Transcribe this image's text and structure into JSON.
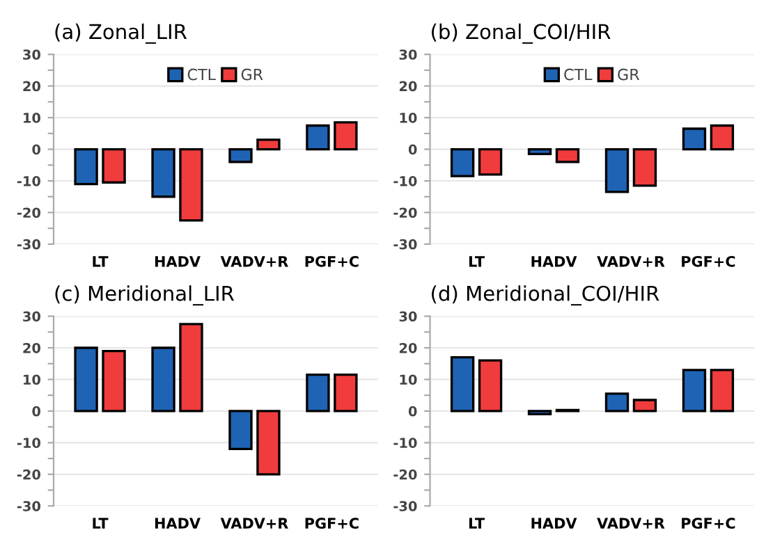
{
  "chart_data": [
    {
      "type": "bar",
      "title": "(a) Zonal_LIR",
      "categories": [
        "LT",
        "HADV",
        "VADV+R",
        "PGF+C"
      ],
      "legend": "top",
      "grid": "y",
      "ylim": [
        -30,
        30
      ],
      "yticks": [
        -30,
        {
          "value": -25,
          "label": null
        },
        -20,
        {
          "value": -15,
          "label": null
        },
        -10,
        {
          "value": -5,
          "label": null
        },
        0,
        {
          "value": 5,
          "label": null
        },
        10,
        {
          "value": 15,
          "label": null
        },
        20,
        {
          "value": 25,
          "label": null
        },
        30
      ],
      "series": [
        {
          "name": "CTL",
          "color": "#1f64b4",
          "values": [
            -11,
            -15,
            -4,
            7.5
          ]
        },
        {
          "name": "GR",
          "color": "#f03c3c",
          "values": [
            -10.5,
            -22.5,
            3,
            8.5
          ]
        }
      ]
    },
    {
      "type": "bar",
      "title": "(b) Zonal_COI/HIR",
      "categories": [
        "LT",
        "HADV",
        "VADV+R",
        "PGF+C"
      ],
      "legend": "top",
      "grid": "y",
      "ylim": [
        -30,
        30
      ],
      "yticks": [
        -30,
        {
          "value": -25,
          "label": null
        },
        -20,
        {
          "value": -15,
          "label": null
        },
        -10,
        {
          "value": -5,
          "label": null
        },
        0,
        {
          "value": 5,
          "label": null
        },
        10,
        {
          "value": 15,
          "label": null
        },
        20,
        {
          "value": 25,
          "label": null
        },
        30
      ],
      "series": [
        {
          "name": "CTL",
          "color": "#1f64b4",
          "values": [
            -8.5,
            -1.5,
            -13.5,
            6.5
          ]
        },
        {
          "name": "GR",
          "color": "#f03c3c",
          "values": [
            -8,
            -4,
            -11.5,
            7.5
          ]
        }
      ]
    },
    {
      "type": "bar",
      "title": "(c) Meridional_LIR",
      "categories": [
        "LT",
        "HADV",
        "VADV+R",
        "PGF+C"
      ],
      "grid": "y",
      "ylim": [
        -30,
        30
      ],
      "yticks": [
        -30,
        {
          "value": -25,
          "label": null
        },
        -20,
        {
          "value": -15,
          "label": null
        },
        -10,
        {
          "value": -5,
          "label": null
        },
        0,
        {
          "value": 5,
          "label": null
        },
        10,
        {
          "value": 15,
          "label": null
        },
        20,
        {
          "value": 25,
          "label": null
        },
        30
      ],
      "series": [
        {
          "color": "#1f64b4",
          "values": [
            20,
            20,
            -12,
            11.5
          ]
        },
        {
          "color": "#f03c3c",
          "values": [
            19,
            27.5,
            -20,
            11.5
          ]
        }
      ]
    },
    {
      "type": "bar",
      "title": "(d) Meridional_COI/HIR",
      "categories": [
        "LT",
        "HADV",
        "VADV+R",
        "PGF+C"
      ],
      "grid": "y",
      "ylim": [
        -30,
        30
      ],
      "yticks": [
        -30,
        {
          "value": -25,
          "label": null
        },
        -20,
        {
          "value": -15,
          "label": null
        },
        -10,
        {
          "value": -5,
          "label": null
        },
        0,
        {
          "value": 5,
          "label": null
        },
        10,
        {
          "value": 15,
          "label": null
        },
        20,
        {
          "value": 25,
          "label": null
        },
        30
      ],
      "series": [
        {
          "color": "#1f64b4",
          "values": [
            17,
            -1,
            5.5,
            13
          ]
        },
        {
          "color": "#f03c3c",
          "values": [
            16,
            0.3,
            3.5,
            13
          ]
        }
      ]
    }
  ]
}
